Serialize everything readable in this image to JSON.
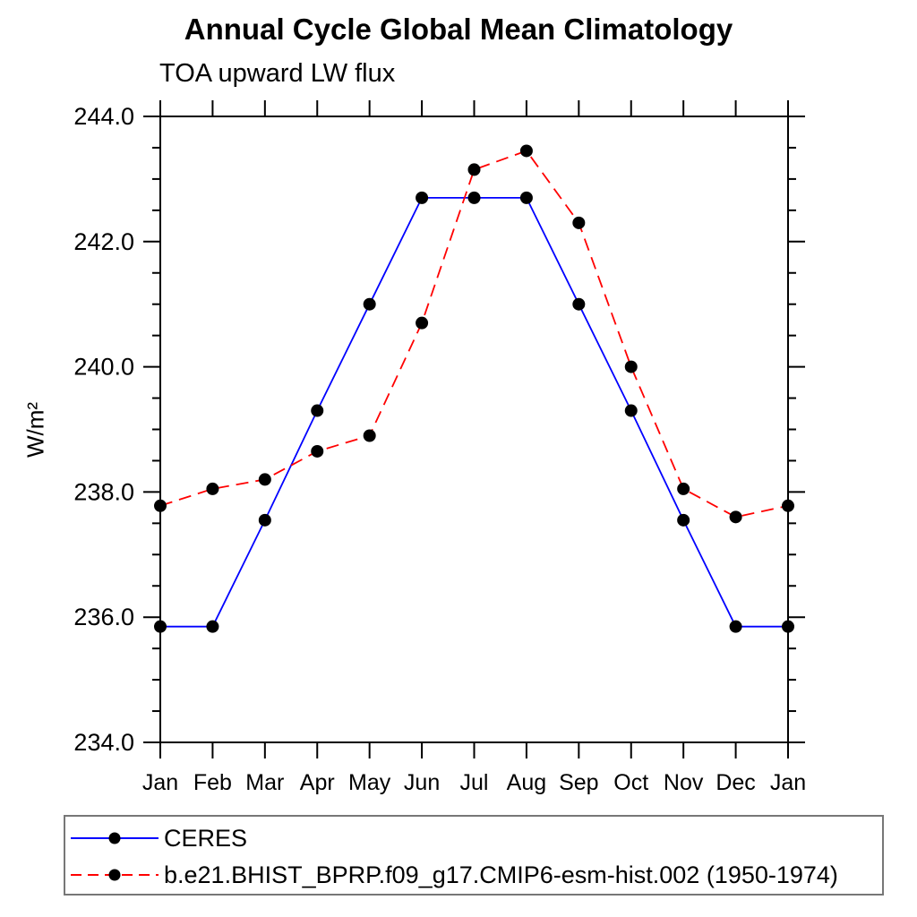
{
  "chart_data": {
    "type": "line",
    "title": "Annual Cycle Global Mean Climatology",
    "subtitle": "TOA upward LW flux",
    "ylabel": "W/m²",
    "x_categories": [
      "Jan",
      "Feb",
      "Mar",
      "Apr",
      "May",
      "Jun",
      "Jul",
      "Aug",
      "Sep",
      "Oct",
      "Nov",
      "Dec",
      "Jan"
    ],
    "ylim": [
      234.0,
      244.0
    ],
    "ytick_labels": [
      "234.0",
      "236.0",
      "238.0",
      "240.0",
      "242.0",
      "244.0"
    ],
    "ytick_major_step": 2.0,
    "ytick_minor_step": 0.5,
    "grid": "off",
    "legend_position": "bottom-left",
    "series": [
      {
        "name": "CERES",
        "color": "#0000ff",
        "style": "solid",
        "marker": "circle",
        "marker_color": "#000000",
        "values": [
          235.85,
          235.85,
          237.55,
          239.3,
          241.0,
          242.7,
          242.7,
          242.7,
          241.0,
          239.3,
          237.55,
          235.85,
          235.85
        ]
      },
      {
        "name": "b.e21.BHIST_BPRP.f09_g17.CMIP6-esm-hist.002 (1950-1974)",
        "color": "#ff0000",
        "style": "dashed",
        "marker": "circle",
        "marker_color": "#000000",
        "values": [
          237.78,
          238.05,
          238.2,
          238.65,
          238.9,
          240.7,
          243.15,
          243.45,
          242.3,
          240.0,
          238.05,
          237.6,
          237.78
        ]
      }
    ]
  }
}
